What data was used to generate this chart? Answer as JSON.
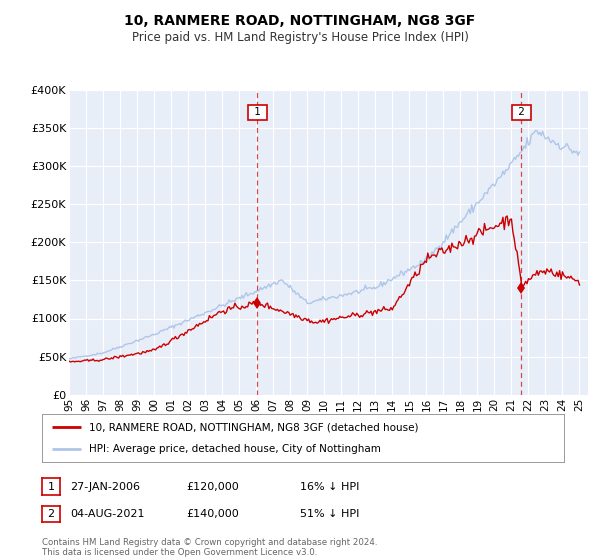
{
  "title": "10, RANMERE ROAD, NOTTINGHAM, NG8 3GF",
  "subtitle": "Price paid vs. HM Land Registry's House Price Index (HPI)",
  "legend_line1": "10, RANMERE ROAD, NOTTINGHAM, NG8 3GF (detached house)",
  "legend_line2": "HPI: Average price, detached house, City of Nottingham",
  "annotation1_label": "1",
  "annotation1_date": "27-JAN-2006",
  "annotation1_price": "£120,000",
  "annotation1_hpi": "16% ↓ HPI",
  "annotation2_label": "2",
  "annotation2_date": "04-AUG-2021",
  "annotation2_price": "£140,000",
  "annotation2_hpi": "51% ↓ HPI",
  "sale1_year": 2006.07,
  "sale1_value": 120000,
  "sale2_year": 2021.59,
  "sale2_value": 140000,
  "hpi_color": "#aec6e8",
  "price_color": "#cc0000",
  "background_color": "#ffffff",
  "plot_bg_color": "#e8eef8",
  "grid_color": "#ffffff",
  "ylim_max": 400000,
  "ylim_min": 0,
  "footer_text": "Contains HM Land Registry data © Crown copyright and database right 2024.\nThis data is licensed under the Open Government Licence v3.0."
}
